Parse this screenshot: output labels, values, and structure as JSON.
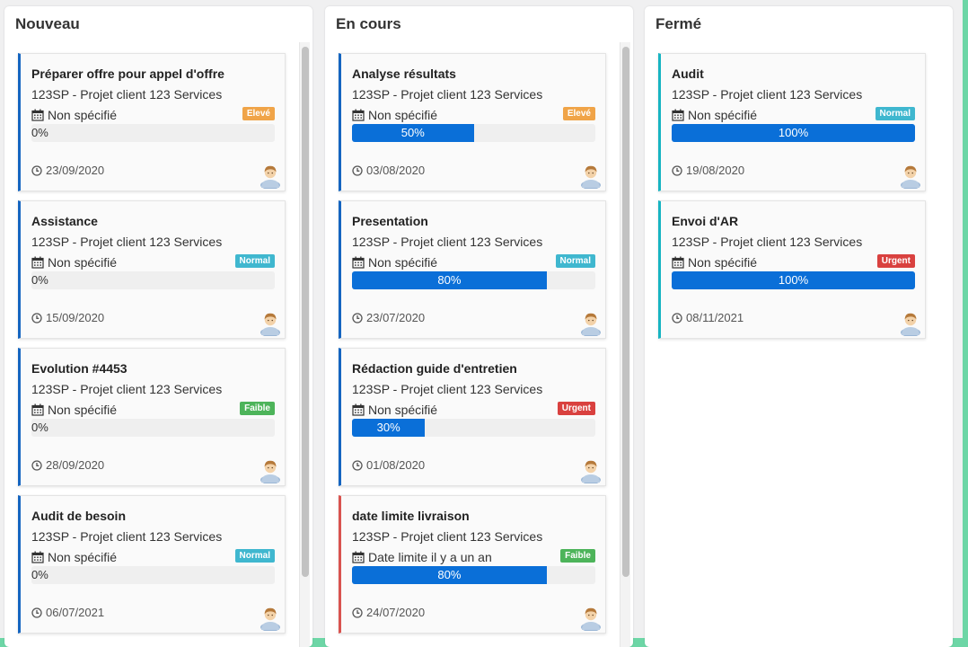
{
  "columns": [
    {
      "title": "Nouveau",
      "cards": [
        {
          "title": "Préparer offre pour appel d'offre",
          "project": "123SP - Projet client 123 Services",
          "deadline": "Non spécifié",
          "priority": "Elevé",
          "priority_class": "eleve",
          "progress": 0,
          "progress_label": "0%",
          "date": "23/09/2020",
          "late": false
        },
        {
          "title": "Assistance",
          "project": "123SP - Projet client 123 Services",
          "deadline": "Non spécifié",
          "priority": "Normal",
          "priority_class": "normal",
          "progress": 0,
          "progress_label": "0%",
          "date": "15/09/2020",
          "late": false
        },
        {
          "title": "Evolution #4453",
          "project": "123SP - Projet client 123 Services",
          "deadline": "Non spécifié",
          "priority": "Faible",
          "priority_class": "faible",
          "progress": 0,
          "progress_label": "0%",
          "date": "28/09/2020",
          "late": false
        },
        {
          "title": "Audit de besoin",
          "project": "123SP - Projet client 123 Services",
          "deadline": "Non spécifié",
          "priority": "Normal",
          "priority_class": "normal",
          "progress": 0,
          "progress_label": "0%",
          "date": "06/07/2021",
          "late": false
        }
      ]
    },
    {
      "title": "En cours",
      "cards": [
        {
          "title": "Analyse résultats",
          "project": "123SP - Projet client 123 Services",
          "deadline": "Non spécifié",
          "priority": "Elevé",
          "priority_class": "eleve",
          "progress": 50,
          "progress_label": "50%",
          "date": "03/08/2020",
          "late": false
        },
        {
          "title": "Presentation",
          "project": "123SP - Projet client 123 Services",
          "deadline": "Non spécifié",
          "priority": "Normal",
          "priority_class": "normal",
          "progress": 80,
          "progress_label": "80%",
          "date": "23/07/2020",
          "late": false
        },
        {
          "title": "Rédaction guide d'entretien",
          "project": "123SP - Projet client 123 Services",
          "deadline": "Non spécifié",
          "priority": "Urgent",
          "priority_class": "urgent",
          "progress": 30,
          "progress_label": "30%",
          "date": "01/08/2020",
          "late": false
        },
        {
          "title": "date limite livraison",
          "project": "123SP - Projet client 123 Services",
          "deadline": "Date limite il y a un an",
          "priority": "Faible",
          "priority_class": "faible",
          "progress": 80,
          "progress_label": "80%",
          "date": "24/07/2020",
          "late": true
        }
      ]
    },
    {
      "title": "Fermé",
      "cards": [
        {
          "title": "Audit",
          "project": "123SP - Projet client 123 Services",
          "deadline": "Non spécifié",
          "priority": "Normal",
          "priority_class": "normal",
          "progress": 100,
          "progress_label": "100%",
          "date": "19/08/2020",
          "late": false
        },
        {
          "title": "Envoi d'AR",
          "project": "123SP - Projet client 123 Services",
          "deadline": "Non spécifié",
          "priority": "Urgent",
          "priority_class": "urgent",
          "progress": 100,
          "progress_label": "100%",
          "date": "08/11/2021",
          "late": false
        }
      ]
    }
  ],
  "colors": {
    "page_background": "#6dd6a6",
    "progress_fill": "#0a6fd8",
    "card_border_open": "#1565c0",
    "card_border_closed": "#17b4c2",
    "card_border_late": "#d9534f",
    "priority_eleve": "#f0a448",
    "priority_normal": "#3fb7cf",
    "priority_faible": "#4db45a",
    "priority_urgent": "#d9413f"
  },
  "icons": {
    "deadline": "calendar-icon",
    "date": "clock-icon",
    "assignee": "user-avatar-icon"
  }
}
